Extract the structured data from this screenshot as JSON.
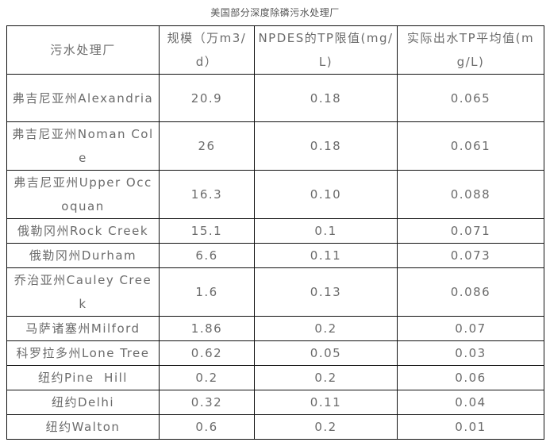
{
  "caption": "美国部分深度除磷污水处理厂",
  "table": {
    "headers": [
      "污水处理厂",
      "规模（万m3/d）",
      "NPDES的TP限值(mg/L)",
      "实际出水TP平均值(mg/L)"
    ],
    "rows": [
      {
        "plant": "弗吉尼亚州Alexandria",
        "scale": "20.9",
        "npdes_tp": "0.18",
        "actual_tp": "0.065"
      },
      {
        "plant": "弗吉尼亚州Noman Cole",
        "scale": "26",
        "npdes_tp": "0.18",
        "actual_tp": "0.061"
      },
      {
        "plant": "弗吉尼亚州Upper Occoquan",
        "scale": "16.3",
        "npdes_tp": "0.10",
        "actual_tp": "0.088"
      },
      {
        "plant": "俄勒冈州Rock Creek",
        "scale": "15.1",
        "npdes_tp": "0.1",
        "actual_tp": "0.071"
      },
      {
        "plant": "俄勒冈州Durham",
        "scale": "6.6",
        "npdes_tp": "0.11",
        "actual_tp": "0.073"
      },
      {
        "plant": "乔治亚州Cauley Creek",
        "scale": "1.6",
        "npdes_tp": "0.13",
        "actual_tp": "0.086"
      },
      {
        "plant": "马萨诸塞州Milford",
        "scale": "1.86",
        "npdes_tp": "0.2",
        "actual_tp": "0.07"
      },
      {
        "plant": "科罗拉多州Lone Tree",
        "scale": "0.62",
        "npdes_tp": "0.05",
        "actual_tp": "0.03"
      },
      {
        "plant": "纽约Pine  Hill",
        "scale": "0.2",
        "npdes_tp": "0.2",
        "actual_tp": "0.06"
      },
      {
        "plant": "纽约Delhi",
        "scale": "0.32",
        "npdes_tp": "0.11",
        "actual_tp": "0.04"
      },
      {
        "plant": "纽约Walton",
        "scale": "0.6",
        "npdes_tp": "0.2",
        "actual_tp": "0.01"
      }
    ]
  }
}
